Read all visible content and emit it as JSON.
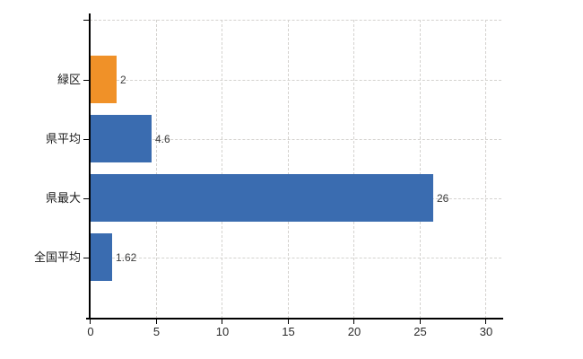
{
  "chart_data": {
    "type": "bar",
    "orientation": "horizontal",
    "title": "",
    "xlabel": "",
    "ylabel": "",
    "categories": [
      "緑区",
      "県平均",
      "県最大",
      "全国平均"
    ],
    "values": [
      2,
      4.6,
      26,
      1.62
    ],
    "value_labels": [
      "2",
      "4.6",
      "26",
      "1.62"
    ],
    "bar_color_keys": [
      "orange",
      "blue",
      "blue",
      "blue"
    ],
    "x_ticks": [
      0,
      5,
      10,
      15,
      20,
      25,
      30
    ],
    "x_tick_labels": [
      "0",
      "5",
      "10",
      "15",
      "20",
      "25",
      "30"
    ],
    "xlim": [
      0,
      31.2
    ],
    "grid": true,
    "grid_style": "dashed",
    "legend": null
  },
  "colors": {
    "orange": "#f09128",
    "blue": "#3a6cb0",
    "grid": "#d4d2cf",
    "axis": "#000000",
    "text": "#2a2a2a",
    "background": "#ffffff"
  }
}
